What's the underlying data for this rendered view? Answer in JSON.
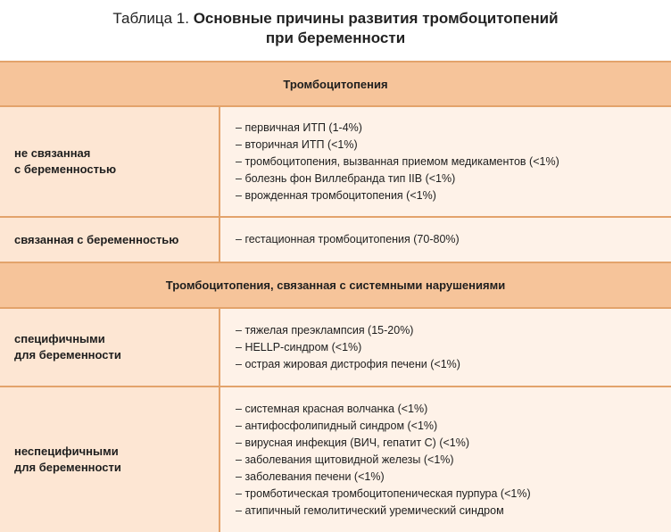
{
  "caption": {
    "label": "Таблица 1.",
    "title_line1": "Основные причины развития тромбоцитопений",
    "title_line2": "при беременности"
  },
  "sections": [
    {
      "heading": "Тромбоцитопения",
      "rows": [
        {
          "label_lines": [
            "не связанная",
            "с беременностью"
          ],
          "items": [
            "первичная ИТП (1-4%)",
            "вторичная ИТП (<1%)",
            "тромбоцитопения, вызванная приемом медикаментов (<1%)",
            "болезнь фон Виллебранда тип IIB (<1%)",
            "врожденная тромбоцитопения (<1%)"
          ]
        },
        {
          "label_lines": [
            "связанная с беременностью"
          ],
          "items": [
            "гестационная тромбоцитопения (70-80%)"
          ]
        }
      ]
    },
    {
      "heading": "Тромбоцитопения, связанная с системными нарушениями",
      "rows": [
        {
          "label_lines": [
            "специфичными",
            "для беременности"
          ],
          "items": [
            "тяжелая преэклампсия (15-20%)",
            "HELLP-синдром (<1%)",
            "острая жировая дистрофия печени (<1%)"
          ]
        },
        {
          "label_lines": [
            "неспецифичными",
            "для беременности"
          ],
          "items": [
            "системная красная волчанка (<1%)",
            "антифосфолипидный синдром (<1%)",
            "вирусная инфекция (ВИЧ, гепатит С) (<1%)",
            "заболевания щитовидной железы (<1%)",
            "заболевания печени (<1%)",
            "тромботическая тромбоцитопеническая пурпура (<1%)",
            "атипичный гемолитический уремический синдром"
          ]
        }
      ]
    }
  ]
}
